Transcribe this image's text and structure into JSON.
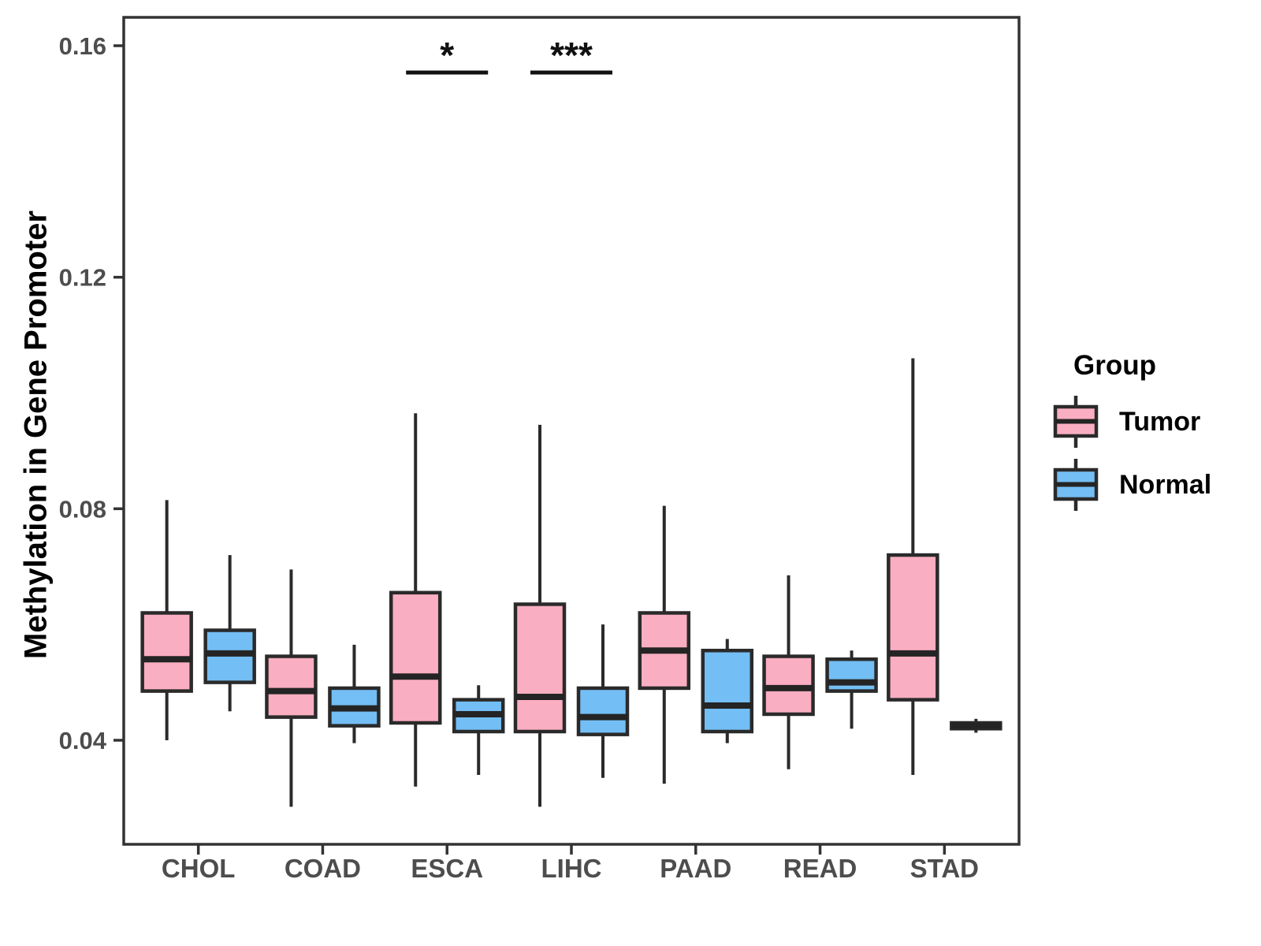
{
  "figure": {
    "background": "#FFFFFF"
  },
  "chart_data": {
    "type": "box",
    "title": "",
    "xlabel": "",
    "ylabel": "Methylation in Gene Promoter",
    "ylim": [
      0.022,
      0.165
    ],
    "yticks": [
      0.04,
      0.08,
      0.12,
      0.16
    ],
    "ytick_labels": [
      "0.04",
      "0.08",
      "0.12",
      "0.16"
    ],
    "categories": [
      "CHOL",
      "COAD",
      "ESCA",
      "LIHC",
      "PAAD",
      "READ",
      "STAD"
    ],
    "grid": false,
    "legend_position": "right",
    "series": [
      {
        "name": "Tumor",
        "color": "#FAAEC1",
        "boxes": [
          {
            "min": 0.04,
            "q1": 0.0485,
            "median": 0.054,
            "q3": 0.062,
            "max": 0.0815
          },
          {
            "min": 0.0285,
            "q1": 0.044,
            "median": 0.0485,
            "q3": 0.0545,
            "max": 0.0695
          },
          {
            "min": 0.032,
            "q1": 0.043,
            "median": 0.051,
            "q3": 0.0655,
            "max": 0.0965
          },
          {
            "min": 0.0285,
            "q1": 0.0415,
            "median": 0.0475,
            "q3": 0.0635,
            "max": 0.0945
          },
          {
            "min": 0.0325,
            "q1": 0.049,
            "median": 0.0555,
            "q3": 0.062,
            "max": 0.0805
          },
          {
            "min": 0.035,
            "q1": 0.0445,
            "median": 0.049,
            "q3": 0.0545,
            "max": 0.0685
          },
          {
            "min": 0.034,
            "q1": 0.047,
            "median": 0.055,
            "q3": 0.072,
            "max": 0.106
          }
        ]
      },
      {
        "name": "Normal",
        "color": "#73BEF4",
        "boxes": [
          {
            "min": 0.045,
            "q1": 0.05,
            "median": 0.055,
            "q3": 0.059,
            "max": 0.072
          },
          {
            "min": 0.0395,
            "q1": 0.0425,
            "median": 0.0455,
            "q3": 0.049,
            "max": 0.0565
          },
          {
            "min": 0.034,
            "q1": 0.0415,
            "median": 0.0445,
            "q3": 0.047,
            "max": 0.0495
          },
          {
            "min": 0.0335,
            "q1": 0.041,
            "median": 0.044,
            "q3": 0.049,
            "max": 0.06
          },
          {
            "min": 0.0395,
            "q1": 0.0415,
            "median": 0.046,
            "q3": 0.0555,
            "max": 0.0575
          },
          {
            "min": 0.042,
            "q1": 0.0485,
            "median": 0.05,
            "q3": 0.054,
            "max": 0.0555
          },
          {
            "min": 0.0413,
            "q1": 0.042,
            "median": 0.0425,
            "q3": 0.043,
            "max": 0.0437
          }
        ]
      }
    ],
    "annotations": [
      {
        "category": "ESCA",
        "label": "*"
      },
      {
        "category": "LIHC",
        "label": "***"
      }
    ]
  },
  "legend": {
    "title": "Group",
    "entries": [
      {
        "label": "Tumor",
        "color": "#FAAEC1"
      },
      {
        "label": "Normal",
        "color": "#73BEF4"
      }
    ]
  },
  "styles": {
    "box_border": "#2A2A2A",
    "median_color": "#242424",
    "panel_border": "#333333",
    "tick_color": "#333333",
    "tick_label_color": "#4D4D4D",
    "annotation_color": "#111111"
  }
}
